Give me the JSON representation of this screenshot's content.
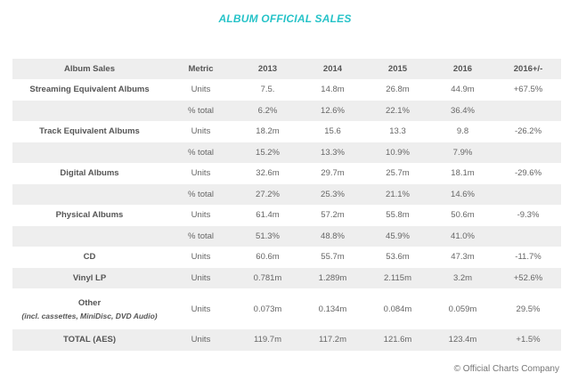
{
  "title": "ALBUM OFFICIAL SALES",
  "table": {
    "headers": [
      "Album Sales",
      "Metric",
      "2013",
      "2014",
      "2015",
      "2016",
      "2016+/-"
    ],
    "rows": [
      {
        "label": "Streaming Equivalent Albums",
        "metric": "Units",
        "y2013": "7.5.",
        "y2014": "14.8m",
        "y2015": "26.8m",
        "y2016": "44.9m",
        "change": "+67.5%"
      },
      {
        "label": "",
        "metric": "% total",
        "y2013": "6.2%",
        "y2014": "12.6%",
        "y2015": "22.1%",
        "y2016": "36.4%",
        "change": ""
      },
      {
        "label": "Track Equivalent Albums",
        "metric": "Units",
        "y2013": "18.2m",
        "y2014": "15.6",
        "y2015": "13.3",
        "y2016": "9.8",
        "change": "-26.2%"
      },
      {
        "label": "",
        "metric": "% total",
        "y2013": "15.2%",
        "y2014": "13.3%",
        "y2015": "10.9%",
        "y2016": "7.9%",
        "change": ""
      },
      {
        "label": "Digital Albums",
        "metric": "Units",
        "y2013": "32.6m",
        "y2014": "29.7m",
        "y2015": "25.7m",
        "y2016": "18.1m",
        "change": "-29.6%"
      },
      {
        "label": "",
        "metric": "% total",
        "y2013": "27.2%",
        "y2014": "25.3%",
        "y2015": "21.1%",
        "y2016": "14.6%",
        "change": ""
      },
      {
        "label": "Physical Albums",
        "metric": "Units",
        "y2013": "61.4m",
        "y2014": "57.2m",
        "y2015": "55.8m",
        "y2016": "50.6m",
        "change": "-9.3%"
      },
      {
        "label": "",
        "metric": "% total",
        "y2013": "51.3%",
        "y2014": "48.8%",
        "y2015": "45.9%",
        "y2016": "41.0%",
        "change": ""
      },
      {
        "label": "CD",
        "metric": "Units",
        "y2013": "60.6m",
        "y2014": "55.7m",
        "y2015": "53.6m",
        "y2016": "47.3m",
        "change": "-11.7%"
      },
      {
        "label": "Vinyl LP",
        "metric": "Units",
        "y2013": "0.781m",
        "y2014": "1.289m",
        "y2015": "2.115m",
        "y2016": "3.2m",
        "change": "+52.6%"
      },
      {
        "label": "Other",
        "sublabel": "(incl. cassettes, MiniDisc, DVD Audio)",
        "metric": "Units",
        "y2013": "0.073m",
        "y2014": "0.134m",
        "y2015": "0.084m",
        "y2016": "0.059m",
        "change": "29.5%"
      },
      {
        "label": "TOTAL (AES)",
        "metric": "Units",
        "y2013": "119.7m",
        "y2014": "117.2m",
        "y2015": "121.6m",
        "y2016": "123.4m",
        "change": "+1.5%"
      }
    ]
  },
  "credit": "© Official Charts Company"
}
